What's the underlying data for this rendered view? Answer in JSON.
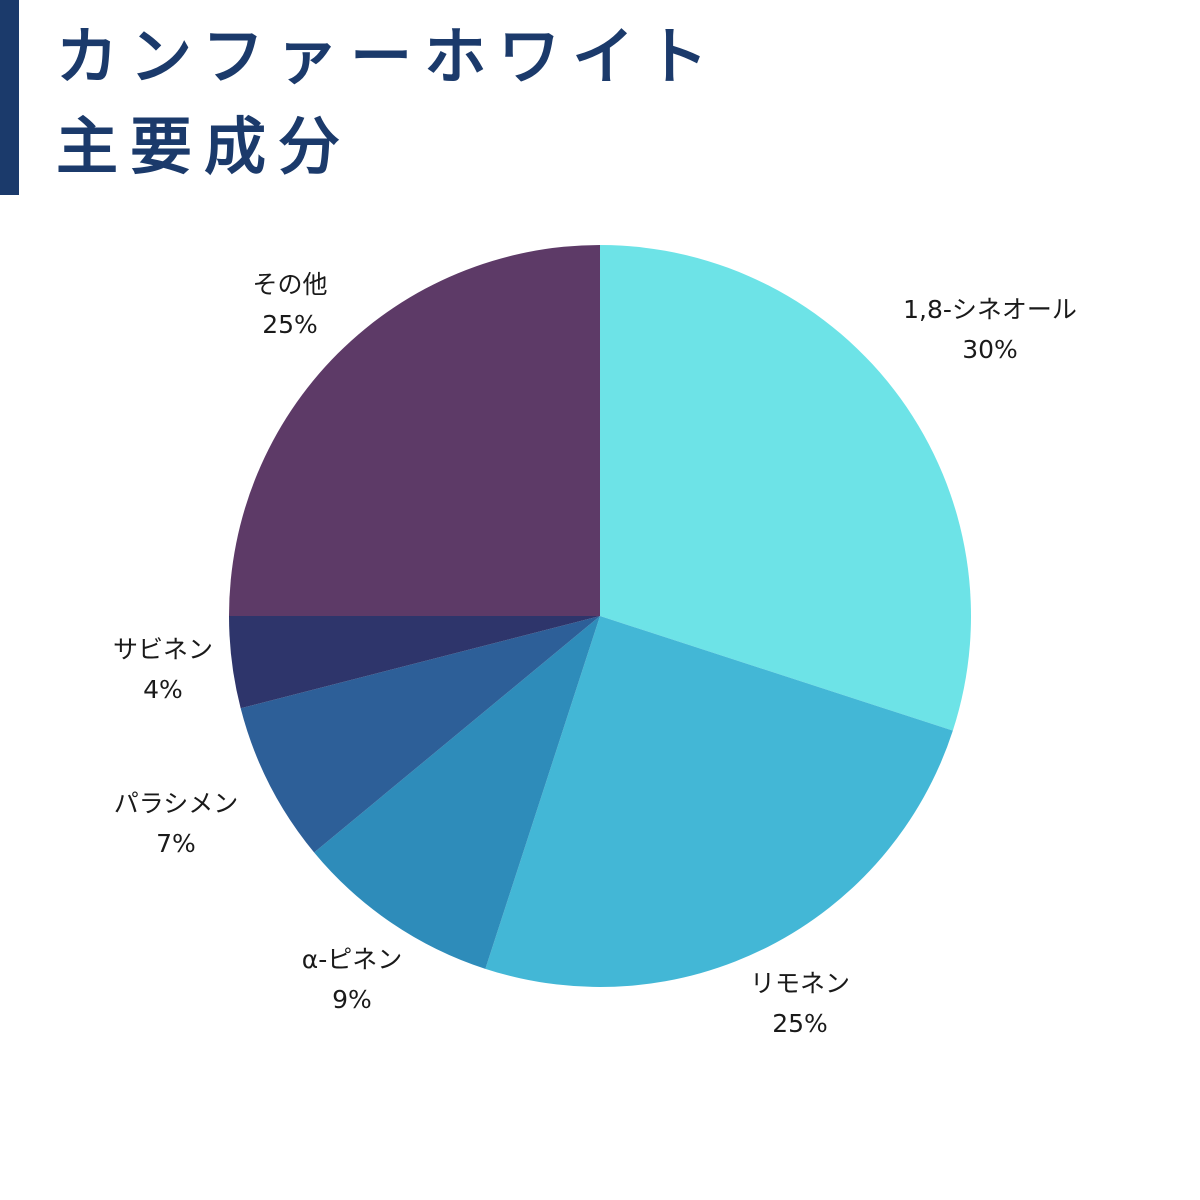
{
  "title": {
    "line1": "カンファーホワイト",
    "line2": "主要成分"
  },
  "chart_data": {
    "type": "pie",
    "start_angle": "12 o'clock",
    "direction": "clockwise",
    "slices": [
      {
        "label": "1,8-シネオール",
        "value": 30,
        "value_label": "30%",
        "color": "#6de3e7"
      },
      {
        "label": "リモネン",
        "value": 25,
        "value_label": "25%",
        "color": "#43b7d6"
      },
      {
        "label": "α-ピネン",
        "value": 9,
        "value_label": "9%",
        "color": "#2e8cba"
      },
      {
        "label": "パラシメン",
        "value": 7,
        "value_label": "7%",
        "color": "#2d5f98"
      },
      {
        "label": "サビネン",
        "value": 4,
        "value_label": "4%",
        "color": "#2e356b"
      },
      {
        "label": "その他",
        "value": 25,
        "value_label": "25%",
        "color": "#5d3a67"
      }
    ]
  }
}
